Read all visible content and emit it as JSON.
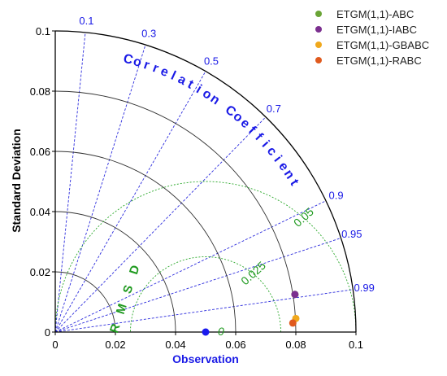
{
  "chart_data": {
    "type": "scatter",
    "subtype": "taylor-diagram",
    "xlabel": "Observation",
    "ylabel": "Standard Deviation",
    "arc_title": "Correlation Coefficient",
    "rms_title": "RMSD",
    "std_range": [
      0,
      0.1
    ],
    "std_ticks": [
      "0",
      "0.02",
      "0.04",
      "0.06",
      "0.08",
      "0.1"
    ],
    "std_tick_values": [
      0,
      0.02,
      0.04,
      0.06,
      0.08,
      0.1
    ],
    "correlation_ticks": [
      "0.1",
      "0.3",
      "0.5",
      "0.7",
      "0.9",
      "0.95",
      "0.99"
    ],
    "correlation_values": [
      0.1,
      0.3,
      0.5,
      0.7,
      0.9,
      0.95,
      0.99
    ],
    "rms_contour_labels": [
      "0",
      "0.025",
      "0.05"
    ],
    "rms_contour_values": [
      0,
      0.025,
      0.05
    ],
    "observation": {
      "std": 0.05,
      "color": "#1a1aee"
    },
    "series": [
      {
        "name": "ETGM(1,1)-ABC",
        "x": 0.0797,
        "y": 0.0125,
        "color": "#6aa436"
      },
      {
        "name": "ETGM(1,1)-IABC",
        "x": 0.0797,
        "y": 0.0125,
        "color": "#7b2f8f"
      },
      {
        "name": "ETGM(1,1)-GBABC",
        "x": 0.08,
        "y": 0.0045,
        "color": "#f0a81c"
      },
      {
        "name": "ETGM(1,1)-RABC",
        "x": 0.079,
        "y": 0.003,
        "color": "#e05a1e"
      }
    ],
    "legend_position": "top-right",
    "colors": {
      "std_arcs": "#333333",
      "correlation_lines": "#2b2bdd",
      "rms_contours": "#2aa82a",
      "correlation_text": "#1a1ae6",
      "rms_text": "#1f9a1f"
    }
  }
}
